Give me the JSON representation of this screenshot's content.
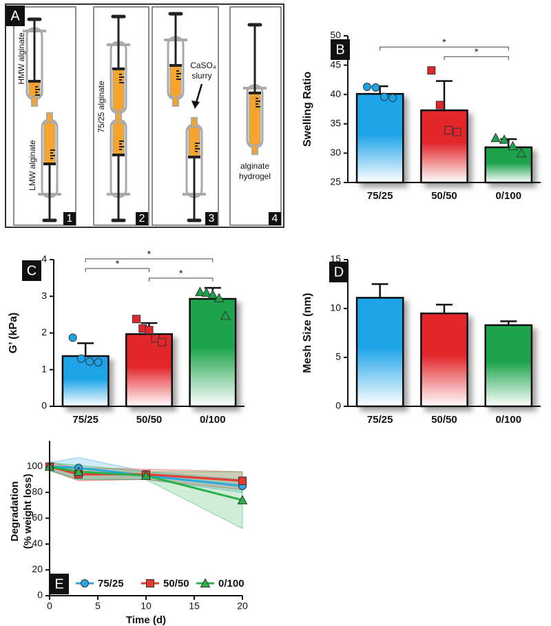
{
  "diagram": {
    "label": "A",
    "steps": [
      "1",
      "2",
      "3",
      "4"
    ],
    "texts": {
      "hmw": "HMW alginate",
      "lmw": "LMW alginate",
      "mix": "75/25 alginate",
      "caso4": "CaSO₄",
      "slurry": "slurry",
      "alginate": "alginate",
      "hydrogel": "hydrogel"
    }
  },
  "chart_data": [
    {
      "type": "bar",
      "label": "B",
      "ylabel": "Swelling Ratio",
      "categories": [
        "75/25",
        "50/50",
        "0/100"
      ],
      "values": [
        40.1,
        37.3,
        31.0
      ],
      "errors": [
        1.3,
        5.0,
        1.4
      ],
      "colors": [
        "#1aa3e8",
        "#e3262b",
        "#1ba34b"
      ],
      "markers": [
        "circle",
        "square",
        "triangle"
      ],
      "points": [
        [
          41.3,
          41.2,
          39.6,
          39.4
        ],
        [
          44.1,
          38.2,
          33.9,
          33.6
        ],
        [
          32.6,
          32.3,
          31.2,
          30.0
        ]
      ],
      "significance": [
        {
          "from": 0,
          "to": 2,
          "label": "*"
        },
        {
          "from": 1,
          "to": 2,
          "label": "*"
        }
      ],
      "ylim": [
        25,
        50
      ],
      "yticks": [
        25,
        30,
        35,
        40,
        45,
        50
      ]
    },
    {
      "type": "bar",
      "label": "C",
      "ylabel": "G’ (kPa)",
      "categories": [
        "75/25",
        "50/50",
        "0/100"
      ],
      "values": [
        1.37,
        1.97,
        2.93
      ],
      "errors": [
        0.35,
        0.3,
        0.3
      ],
      "colors": [
        "#1aa3e8",
        "#e3262b",
        "#1ba34b"
      ],
      "markers": [
        "circle",
        "square",
        "triangle"
      ],
      "points": [
        [
          1.87,
          1.3,
          1.22,
          1.2
        ],
        [
          2.38,
          2.12,
          2.08,
          1.85,
          1.75
        ],
        [
          3.12,
          3.1,
          3.05,
          2.95,
          2.47
        ]
      ],
      "significance": [
        {
          "from": 0,
          "to": 2,
          "label": "*"
        },
        {
          "from": 1,
          "to": 2,
          "label": "*"
        },
        {
          "from": 0,
          "to": 1,
          "label": "*"
        }
      ],
      "ylim": [
        0,
        4
      ],
      "yticks": [
        0,
        1,
        2,
        3,
        4
      ]
    },
    {
      "type": "bar",
      "label": "D",
      "ylabel": "Mesh Size (nm)",
      "categories": [
        "75/25",
        "50/50",
        "0/100"
      ],
      "values": [
        11.1,
        9.5,
        8.3
      ],
      "errors": [
        1.4,
        0.9,
        0.4
      ],
      "colors": [
        "#1aa3e8",
        "#e3262b",
        "#1ba34b"
      ],
      "ylim": [
        0,
        15
      ],
      "yticks": [
        0,
        5,
        10,
        15
      ]
    },
    {
      "type": "line",
      "label": "E",
      "ylabel": [
        "Degradation",
        "(% weight loss)"
      ],
      "xlabel": "Time (d)",
      "xlim": [
        0,
        20
      ],
      "xticks": [
        0,
        5,
        10,
        15,
        20
      ],
      "ylim": [
        0,
        120
      ],
      "yticks": [
        0,
        20,
        40,
        60,
        80,
        100
      ],
      "x": [
        0,
        3,
        10,
        20
      ],
      "series": [
        {
          "name": "75/25",
          "color": "#29a8e0",
          "marker": "circle",
          "values": [
            100,
            99,
            93,
            85
          ],
          "lower": [
            97,
            90,
            90,
            80
          ],
          "upper": [
            103,
            107,
            96,
            90
          ]
        },
        {
          "name": "50/50",
          "color": "#e53a2e",
          "marker": "square",
          "values": [
            100,
            94,
            94,
            89
          ],
          "lower": [
            97,
            89,
            90,
            82
          ],
          "upper": [
            103,
            99,
            98,
            96
          ]
        },
        {
          "name": "0/100",
          "color": "#2ab24a",
          "marker": "triangle",
          "values": [
            100,
            96,
            93,
            74
          ],
          "lower": [
            97,
            90,
            90,
            52
          ],
          "upper": [
            103,
            101,
            96,
            96
          ]
        }
      ]
    }
  ]
}
